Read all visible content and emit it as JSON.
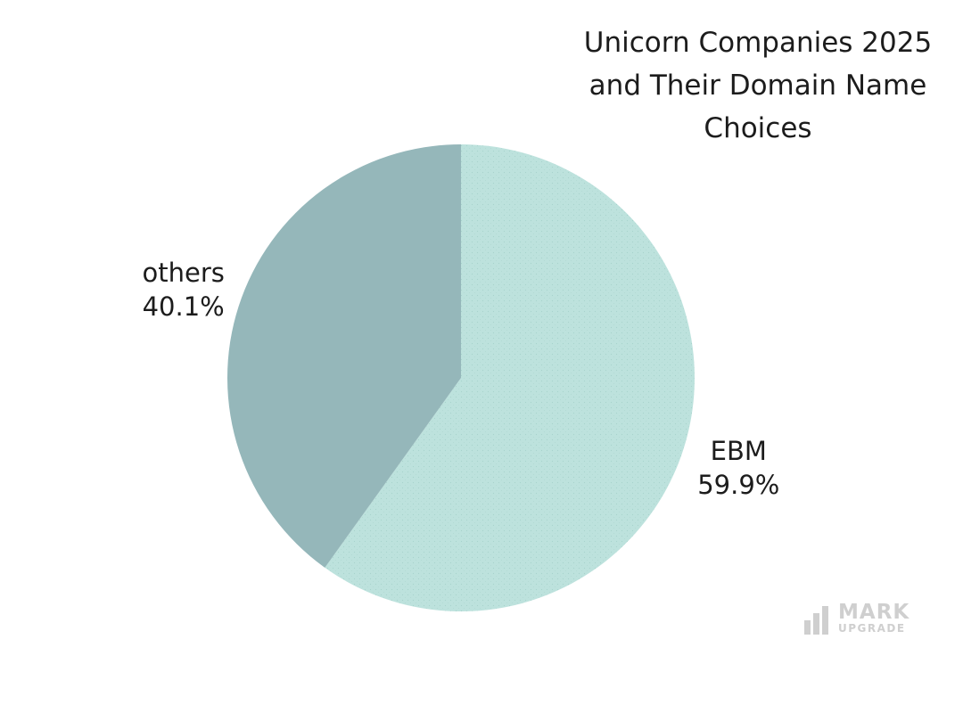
{
  "chart_data": {
    "type": "pie",
    "title_lines": [
      "Unicorn Companies 2025",
      "and Their Domain Name",
      "Choices"
    ],
    "slices": [
      {
        "name": "EBM",
        "value": 59.9,
        "label": "59.9%",
        "color": "#bde2dd"
      },
      {
        "name": "others",
        "value": 40.1,
        "label": "40.1%",
        "color": "#95b7ba"
      }
    ],
    "legend": "none"
  },
  "watermark": {
    "line1": "MARK",
    "line2": "UPGRADE",
    "color": "#cfcfcf"
  }
}
